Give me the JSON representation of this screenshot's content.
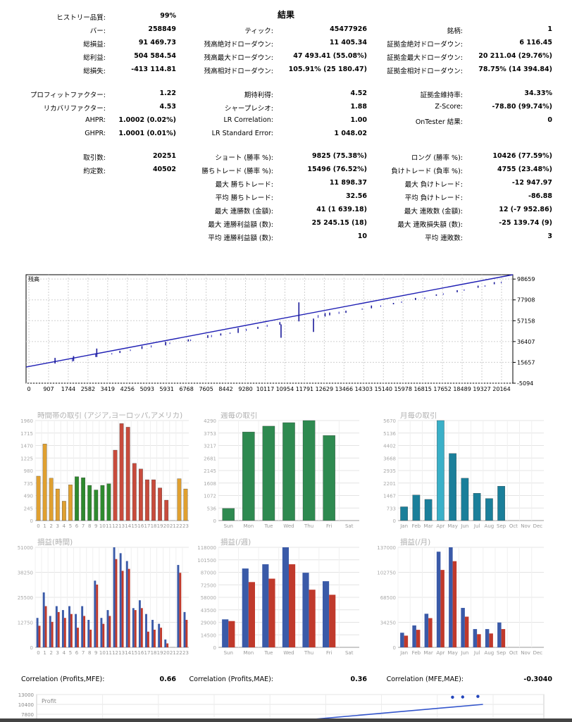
{
  "title": "結果",
  "stats": {
    "history_quality": {
      "label": "ヒストリー品質:",
      "value": "99%"
    },
    "bars": {
      "label": "バー:",
      "value": "258849"
    },
    "ticks": {
      "label": "ティック:",
      "value": "45477926"
    },
    "symbols": {
      "label": "銘柄:",
      "value": "1"
    },
    "net_profit": {
      "label": "総損益:",
      "value": "91 469.73"
    },
    "balance_dd_abs": {
      "label": "残高絶対ドローダウン:",
      "value": "11 405.34"
    },
    "equity_dd_abs": {
      "label": "証拠金絶対ドローダウン:",
      "value": "6 116.45"
    },
    "gross_profit": {
      "label": "総利益:",
      "value": "504 584.54"
    },
    "balance_dd_max": {
      "label": "残高最大ドローダウン:",
      "value": "47 493.41 (55.08%)"
    },
    "equity_dd_max": {
      "label": "証拠金最大ドローダウン:",
      "value": "20 211.04 (29.76%)"
    },
    "gross_loss": {
      "label": "総損失:",
      "value": "-413 114.81"
    },
    "balance_dd_rel": {
      "label": "残高相対ドローダウン:",
      "value": "105.91% (25 180.47)"
    },
    "equity_dd_rel": {
      "label": "証拠金相対ドローダウン:",
      "value": "78.75% (14 394.84)"
    },
    "profit_factor": {
      "label": "プロフィットファクター:",
      "value": "1.22"
    },
    "expected_payoff": {
      "label": "期待利得:",
      "value": "4.52"
    },
    "margin_level": {
      "label": "証拠金維持率:",
      "value": "34.33%"
    },
    "recovery_factor": {
      "label": "リカバリファクター:",
      "value": "4.53"
    },
    "sharpe": {
      "label": "シャープレシオ:",
      "value": "1.88"
    },
    "z_score": {
      "label": "Z-Score:",
      "value": "-78.80 (99.74%)"
    },
    "ahpr": {
      "label": "AHPR:",
      "value": "1.0002 (0.02%)"
    },
    "lr_corr": {
      "label": "LR Correlation:",
      "value": "1.00"
    },
    "ontester": {
      "label": "OnTester 結果:",
      "value": "0"
    },
    "ghpr": {
      "label": "GHPR:",
      "value": "1.0001 (0.01%)"
    },
    "lr_std_err": {
      "label": "LR Standard Error:",
      "value": "1 048.02"
    },
    "trades": {
      "label": "取引数:",
      "value": "20251"
    },
    "short": {
      "label": "ショート (勝率 %):",
      "value": "9825 (75.38%)"
    },
    "long": {
      "label": "ロング (勝率 %):",
      "value": "10426 (77.59%)"
    },
    "deals": {
      "label": "約定数:",
      "value": "40502"
    },
    "profit_trades": {
      "label": "勝ちトレード (勝率 %):",
      "value": "15496 (76.52%)"
    },
    "loss_trades": {
      "label": "負けトレード (負率 %):",
      "value": "4755 (23.48%)"
    },
    "largest_profit": {
      "label": "最大 勝ちトレード:",
      "value": "11 898.37"
    },
    "largest_loss": {
      "label": "最大 負けトレード:",
      "value": "-12 947.97"
    },
    "avg_profit": {
      "label": "平均 勝ちトレード:",
      "value": "32.56"
    },
    "avg_loss": {
      "label": "平均 負けトレード:",
      "value": "-86.88"
    },
    "max_consec_wins": {
      "label": "最大 連勝数 (金額):",
      "value": "41 (1 639.18)"
    },
    "max_consec_losses": {
      "label": "最大 連敗数 (金額):",
      "value": "12 (-7 952.86)"
    },
    "max_consec_profit": {
      "label": "最大 連勝利益額 (数):",
      "value": "25 245.15 (18)"
    },
    "max_consec_loss": {
      "label": "最大 連敗損失額 (数):",
      "value": "-25 139.74 (9)"
    },
    "avg_consec_wins": {
      "label": "平均 連勝利益額 (数):",
      "value": "10"
    },
    "avg_consec_losses": {
      "label": "平均 連敗数:",
      "value": "3"
    }
  },
  "chart_data": [
    {
      "type": "line",
      "title": "残高",
      "x_ticks": [
        "0",
        "907",
        "1744",
        "2582",
        "3419",
        "4256",
        "5093",
        "5931",
        "6768",
        "7605",
        "8442",
        "9280",
        "10117",
        "10954",
        "11791",
        "12629",
        "13466",
        "14303",
        "15140",
        "15978",
        "16815",
        "17652",
        "18489",
        "19327",
        "20164"
      ],
      "y_ticks": [
        "98659",
        "77908",
        "57158",
        "36407",
        "15657",
        "-5094"
      ],
      "ylim": [
        -5094,
        103000
      ],
      "xlim": [
        0,
        21000
      ],
      "series": [
        {
          "color": "#1f1fb4",
          "values": [
            [
              0,
              11000
            ],
            [
              21000,
              103000
            ]
          ]
        }
      ],
      "spikes": [
        [
          1250,
          14500,
          8
        ],
        [
          2050,
          17000,
          7
        ],
        [
          3050,
          21000,
          12
        ],
        [
          4050,
          25000,
          3
        ],
        [
          5000,
          29000,
          4
        ],
        [
          6020,
          32600,
          5
        ],
        [
          7000,
          36500,
          3
        ],
        [
          7840,
          40000,
          4
        ],
        [
          8400,
          42400,
          3
        ],
        [
          9150,
          45000,
          7
        ],
        [
          10000,
          49000,
          3
        ],
        [
          10950,
          53000,
          4
        ],
        [
          11000,
          53500,
          -19
        ],
        [
          11770,
          56500,
          27
        ],
        [
          12400,
          59300,
          -19
        ],
        [
          12900,
          61300,
          5
        ],
        [
          13100,
          62500,
          4
        ],
        [
          13800,
          65000,
          3
        ],
        [
          14900,
          69500,
          4
        ],
        [
          15850,
          73500,
          2
        ],
        [
          16800,
          77800,
          3
        ],
        [
          17700,
          82000,
          2
        ],
        [
          18600,
          85500,
          3
        ],
        [
          19500,
          90000,
          3
        ],
        [
          20200,
          93500,
          3
        ]
      ],
      "thin": [
        [
          2000,
          16500,
          4
        ],
        [
          3000,
          21000,
          5
        ],
        [
          3700,
          23500,
          2
        ],
        [
          4500,
          27000,
          2
        ],
        [
          5400,
          30500,
          3
        ],
        [
          6200,
          34000,
          2
        ],
        [
          7100,
          37000,
          2
        ],
        [
          8000,
          40800,
          3
        ],
        [
          8800,
          44000,
          2
        ],
        [
          9500,
          47000,
          3
        ],
        [
          10400,
          51000,
          3
        ],
        [
          12600,
          60000,
          4
        ],
        [
          13500,
          64000,
          3
        ],
        [
          14500,
          68000,
          2
        ],
        [
          15300,
          71000,
          2
        ],
        [
          16200,
          75000,
          2
        ],
        [
          17200,
          79000,
          2
        ],
        [
          18000,
          83000,
          2
        ],
        [
          18900,
          87000,
          2
        ],
        [
          19800,
          91000,
          2
        ],
        [
          20500,
          94500,
          2
        ]
      ]
    },
    {
      "type": "bar",
      "title": "時間帯の取引 (アジア,ヨーロッパ,アメリカ)",
      "categories": [
        "0",
        "1",
        "2",
        "3",
        "4",
        "5",
        "6",
        "7",
        "8",
        "9",
        "10",
        "11",
        "12",
        "13",
        "14",
        "15",
        "16",
        "17",
        "18",
        "19",
        "20",
        "21",
        "22",
        "23"
      ],
      "values": [
        870,
        1500,
        830,
        620,
        380,
        700,
        860,
        840,
        690,
        600,
        690,
        720,
        1380,
        1900,
        1830,
        1120,
        1010,
        800,
        800,
        640,
        400,
        0,
        820,
        620
      ],
      "colors": [
        "#e0a030",
        "#e0a030",
        "#e0a030",
        "#e0a030",
        "#e0a030",
        "#e0a030",
        "#2e8a2e",
        "#2e8a2e",
        "#2e8a2e",
        "#2e8a2e",
        "#2e8a2e",
        "#2e8a2e",
        "#c84b3c",
        "#c84b3c",
        "#c84b3c",
        "#c84b3c",
        "#c84b3c",
        "#c84b3c",
        "#c84b3c",
        "#c84b3c",
        "#c84b3c",
        "#c84b3c",
        "#e0a030",
        "#e0a030"
      ],
      "y_ticks": [
        "1960",
        "1715",
        "1470",
        "1225",
        "980",
        "735",
        "490",
        "245",
        "0"
      ],
      "ylim": [
        0,
        1960
      ]
    },
    {
      "type": "bar",
      "title": "週毎の取引",
      "categories": [
        "Sun",
        "Mon",
        "Tue",
        "Wed",
        "Thu",
        "Fri",
        "Sat"
      ],
      "values": [
        520,
        3800,
        4050,
        4200,
        4290,
        3650,
        0
      ],
      "colors": [
        "#2e8a50",
        "#2e8a50",
        "#2e8a50",
        "#2e8a50",
        "#2e8a50",
        "#2e8a50",
        "#2e8a50"
      ],
      "y_ticks": [
        "4290",
        "3753",
        "3217",
        "2681",
        "2145",
        "1608",
        "1072",
        "536",
        "0"
      ],
      "ylim": [
        0,
        4290
      ]
    },
    {
      "type": "bar",
      "title": "月毎の取引",
      "categories": [
        "Jan",
        "Feb",
        "Mar",
        "Apr",
        "May",
        "Jun",
        "Jul",
        "Aug",
        "Sep",
        "Oct",
        "Nov",
        "Dec"
      ],
      "values": [
        780,
        1450,
        1200,
        5670,
        3800,
        2400,
        1550,
        1250,
        1950,
        0,
        0,
        0
      ],
      "colors": [
        "#1a7f9a",
        "#1a7f9a",
        "#1a7f9a",
        "#3ab0c8",
        "#1a7f9a",
        "#1a7f9a",
        "#1a7f9a",
        "#1a7f9a",
        "#1a7f9a",
        "#1a7f9a",
        "#1a7f9a",
        "#1a7f9a"
      ],
      "y_ticks": [
        "5670",
        "5136",
        "4402",
        "3668",
        "2935",
        "2201",
        "1467",
        "733",
        "0"
      ],
      "ylim": [
        0,
        5670
      ]
    },
    {
      "type": "bar",
      "title": "損益(時間)",
      "categories": [
        "0",
        "1",
        "2",
        "3",
        "4",
        "5",
        "6",
        "7",
        "8",
        "9",
        "10",
        "11",
        "12",
        "13",
        "14",
        "15",
        "16",
        "17",
        "18",
        "19",
        "20",
        "21",
        "22",
        "23"
      ],
      "series": [
        {
          "color": "#3a5aa8",
          "values": [
            15000,
            28000,
            16000,
            21000,
            19000,
            21000,
            17000,
            21000,
            14000,
            34000,
            15000,
            19000,
            51000,
            48000,
            44000,
            20000,
            24000,
            17000,
            14000,
            12000,
            4000,
            0,
            42000,
            18000
          ]
        },
        {
          "color": "#c0392b",
          "values": [
            11000,
            21000,
            13000,
            18000,
            15000,
            17000,
            10000,
            16000,
            9000,
            32000,
            12000,
            16000,
            45000,
            39000,
            40000,
            19000,
            20000,
            8000,
            9000,
            10000,
            2000,
            0,
            38000,
            14000
          ]
        }
      ],
      "y_ticks": [
        "51000",
        "38250",
        "25500",
        "12750",
        "0"
      ],
      "ylim": [
        0,
        51000
      ]
    },
    {
      "type": "bar",
      "title": "損益(/週)",
      "categories": [
        "Sun",
        "Mon",
        "Tue",
        "Wed",
        "Thu",
        "Fri",
        "Sat"
      ],
      "series": [
        {
          "color": "#3a5aa8",
          "values": [
            33000,
            93000,
            98000,
            118000,
            88000,
            78000,
            0
          ]
        },
        {
          "color": "#c0392b",
          "values": [
            31000,
            77000,
            81000,
            98000,
            68000,
            62000,
            0
          ]
        }
      ],
      "y_ticks": [
        "118000",
        "101500",
        "87000",
        "72500",
        "58000",
        "43500",
        "29000",
        "14500",
        "0"
      ],
      "ylim": [
        0,
        118000
      ]
    },
    {
      "type": "bar",
      "title": "損益(/月)",
      "categories": [
        "Jan",
        "Feb",
        "Mar",
        "Apr",
        "May",
        "Jun",
        "Jul",
        "Aug",
        "Sep",
        "Oct",
        "Nov",
        "Dec"
      ],
      "series": [
        {
          "color": "#3a5aa8",
          "values": [
            20000,
            30000,
            46000,
            131000,
            137000,
            54000,
            25000,
            25000,
            34000,
            0,
            0,
            0
          ]
        },
        {
          "color": "#c0392b",
          "values": [
            16000,
            24000,
            40000,
            106000,
            118000,
            42000,
            18000,
            19000,
            25000,
            0,
            0,
            0
          ]
        }
      ],
      "y_ticks": [
        "137000",
        "102750",
        "68500",
        "34250",
        "0"
      ],
      "ylim": [
        0,
        137000
      ]
    },
    {
      "type": "scatter",
      "title": "Profit",
      "y_ticks": [
        "13000",
        "10400",
        "7800"
      ],
      "points": [
        [
          0.82,
          12300
        ],
        [
          0.84,
          12350
        ],
        [
          0.87,
          12500
        ]
      ]
    }
  ],
  "correlation": {
    "profits_mfe": {
      "label": "Correlation (Profits,MFE):",
      "value": "0.66"
    },
    "profits_mae": {
      "label": "Correlation (Profits,MAE):",
      "value": "0.36"
    },
    "mfe_mae": {
      "label": "Correlation (MFE,MAE):",
      "value": "-0.3040"
    }
  }
}
